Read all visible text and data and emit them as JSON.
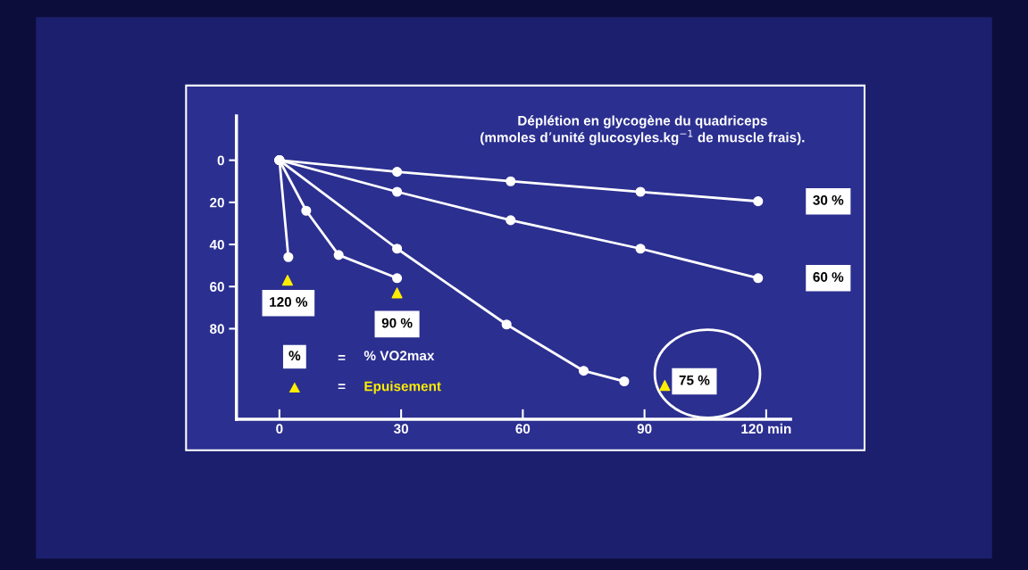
{
  "chart_data": {
    "type": "line",
    "title": "Déplétion en glycogène du quadriceps",
    "subtitle": "(mmoles d’unité glucosyles.kg$^{−1}$ de muscle frais).",
    "series": [
      {
        "name": "30 %",
        "color": "#ffffff",
        "x": [
          0,
          29,
          57,
          89,
          118
        ],
        "values": [
          0,
          5.5,
          10,
          15,
          19.5
        ]
      },
      {
        "name": "60 %",
        "color": "#ffffff",
        "x": [
          0,
          29,
          57,
          89,
          118
        ],
        "values": [
          0,
          15,
          28.5,
          42,
          56
        ]
      },
      {
        "name": "75 %",
        "color": "#ffffff",
        "x": [
          0,
          29,
          56,
          75,
          85
        ],
        "values": [
          0,
          42,
          78,
          100,
          105
        ]
      },
      {
        "name": "90 %",
        "color": "#ffffff",
        "x": [
          0,
          6.6,
          14.6,
          29
        ],
        "values": [
          0,
          24,
          45,
          56
        ]
      },
      {
        "name": "120 %",
        "color": "#ffffff",
        "x": [
          0,
          2.2
        ],
        "values": [
          0,
          46
        ]
      },
      {
        "type": "scatter",
        "marker": "triangle",
        "color": "#ffee00",
        "x": [
          2,
          29,
          95
        ],
        "values": [
          57,
          63,
          107
        ]
      }
    ],
    "marker": "circle",
    "xlim": [
      -10.6,
      126
    ],
    "xticks": [
      0,
      30,
      60,
      90,
      {
        "value": 120,
        "label": "120 min"
      }
    ],
    "ylim": [
      123,
      -21
    ],
    "yticks": [
      0,
      20,
      40,
      60,
      80
    ],
    "annotations": [
      "%",
      "=",
      "% VO2max",
      "=",
      "Epuisement"
    ],
    "grid": false
  }
}
